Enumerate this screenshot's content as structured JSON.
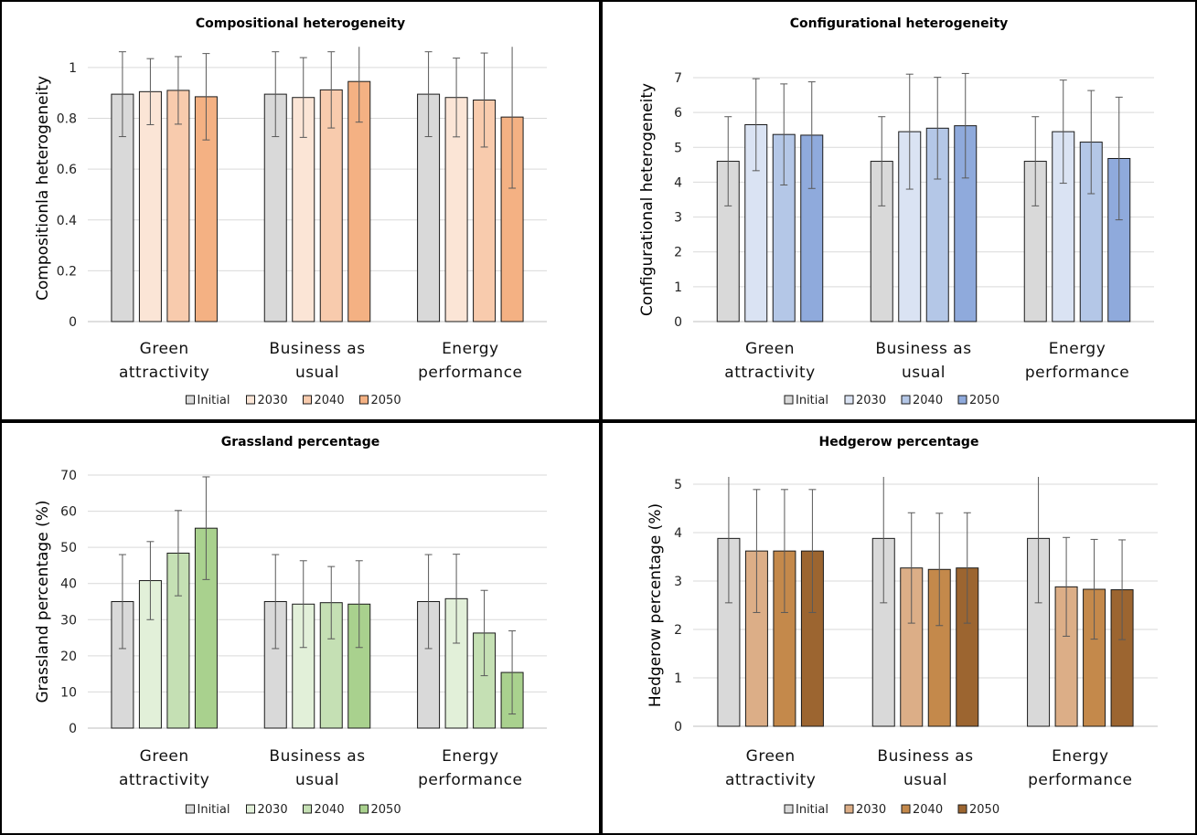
{
  "chart_data": [
    {
      "type": "bar",
      "title": "Compositional heterogeneity",
      "ylabel": "Compositionla heterogeneity",
      "xlabel": "",
      "categories": [
        "Green attractivity",
        "Business as usual",
        "Energy performance"
      ],
      "category_lines": [
        [
          "Green",
          "attractivity"
        ],
        [
          "Business as",
          "usual"
        ],
        [
          "Energy",
          "performance"
        ]
      ],
      "ylim": [
        0,
        1.05
      ],
      "yticks": [
        0,
        0.2,
        0.4,
        0.6,
        0.8,
        1
      ],
      "ytick_labels": [
        "0",
        "0.2",
        "0.4",
        "0.6",
        "0.8",
        "1"
      ],
      "grid": true,
      "legend_position": "bottom",
      "series": [
        {
          "name": "Initial",
          "color": "#d9d9d9",
          "values": [
            0.895,
            0.895,
            0.895
          ],
          "error": [
            0.167,
            0.167,
            0.167
          ]
        },
        {
          "name": "2030",
          "color": "#fbe5d6",
          "values": [
            0.905,
            0.882,
            0.882
          ],
          "error": [
            0.13,
            0.157,
            0.155
          ]
        },
        {
          "name": "2040",
          "color": "#f8cbad",
          "values": [
            0.91,
            0.912,
            0.872
          ],
          "error": [
            0.133,
            0.15,
            0.185
          ]
        },
        {
          "name": "2050",
          "color": "#f4b183",
          "values": [
            0.885,
            0.945,
            0.805
          ],
          "error": [
            0.17,
            0.16,
            0.28
          ]
        }
      ]
    },
    {
      "type": "bar",
      "title": "Configurational heterogeneity",
      "ylabel": "Configurational heterogeneity",
      "xlabel": "",
      "categories": [
        "Green attractivity",
        "Business as usual",
        "Energy performance"
      ],
      "category_lines": [
        [
          "Green",
          "attractivity"
        ],
        [
          "Business as",
          "usual"
        ],
        [
          "Energy",
          "performance"
        ]
      ],
      "ylim": [
        0,
        7
      ],
      "yticks": [
        0,
        1,
        2,
        3,
        4,
        5,
        6,
        7
      ],
      "ytick_labels": [
        "0",
        "1",
        "2",
        "3",
        "4",
        "5",
        "6",
        "7"
      ],
      "grid": true,
      "legend_position": "bottom",
      "series": [
        {
          "name": "Initial",
          "color": "#d9d9d9",
          "values": [
            4.6,
            4.6,
            4.6
          ],
          "error": [
            1.28,
            1.28,
            1.28
          ]
        },
        {
          "name": "2030",
          "color": "#dae3f3",
          "values": [
            5.65,
            5.45,
            5.45
          ],
          "error": [
            1.32,
            1.65,
            1.48
          ]
        },
        {
          "name": "2040",
          "color": "#b4c7e7",
          "values": [
            5.37,
            5.55,
            5.15
          ],
          "error": [
            1.45,
            1.46,
            1.48
          ]
        },
        {
          "name": "2050",
          "color": "#8faadc",
          "values": [
            5.35,
            5.62,
            4.68
          ],
          "error": [
            1.53,
            1.5,
            1.76
          ]
        }
      ]
    },
    {
      "type": "bar",
      "title": "Grassland percentage",
      "ylabel": "Grassland percentage (%)",
      "xlabel": "",
      "categories": [
        "Green attractivity",
        "Business as usual",
        "Energy performance"
      ],
      "category_lines": [
        [
          "Green",
          "attractivity"
        ],
        [
          "Business as",
          "usual"
        ],
        [
          "Energy",
          "performance"
        ]
      ],
      "ylim": [
        0,
        70
      ],
      "yticks": [
        0,
        10,
        20,
        30,
        40,
        50,
        60,
        70
      ],
      "ytick_labels": [
        "0",
        "10",
        "20",
        "30",
        "40",
        "50",
        "60",
        "70"
      ],
      "grid": true,
      "legend_position": "bottom",
      "series": [
        {
          "name": "Initial",
          "color": "#d9d9d9",
          "values": [
            35,
            35,
            35
          ],
          "error": [
            13,
            13,
            13
          ]
        },
        {
          "name": "2030",
          "color": "#e2f0d9",
          "values": [
            40.8,
            34.3,
            35.8
          ],
          "error": [
            10.8,
            12,
            12.3
          ]
        },
        {
          "name": "2040",
          "color": "#c5e0b4",
          "values": [
            48.4,
            34.7,
            26.3
          ],
          "error": [
            11.8,
            10,
            11.8
          ]
        },
        {
          "name": "2050",
          "color": "#a9d18e",
          "values": [
            55.3,
            34.3,
            15.4
          ],
          "error": [
            14.2,
            12,
            11.5
          ]
        }
      ]
    },
    {
      "type": "bar",
      "title": "Hedgerow percentage",
      "ylabel": "Hedgerow percentage (%)",
      "xlabel": "",
      "categories": [
        "Green attractivity",
        "Business as usual",
        "Energy performance"
      ],
      "category_lines": [
        [
          "Green",
          "attractivity"
        ],
        [
          "Business as",
          "usual"
        ],
        [
          "Energy",
          "performance"
        ]
      ],
      "ylim": [
        0,
        5
      ],
      "yticks": [
        0,
        1,
        2,
        3,
        4,
        5
      ],
      "ytick_labels": [
        "0",
        "1",
        "2",
        "3",
        "4",
        "5"
      ],
      "grid": true,
      "legend_position": "bottom",
      "series": [
        {
          "name": "Initial",
          "color": "#d9d9d9",
          "values": [
            3.88,
            3.88,
            3.88
          ],
          "error": [
            1.33,
            1.33,
            1.33
          ]
        },
        {
          "name": "2030",
          "color": "#dcae87",
          "values": [
            3.62,
            3.27,
            2.88
          ],
          "error": [
            1.27,
            1.14,
            1.02
          ]
        },
        {
          "name": "2040",
          "color": "#c4894b",
          "values": [
            3.62,
            3.24,
            2.83
          ],
          "error": [
            1.27,
            1.16,
            1.03
          ]
        },
        {
          "name": "2050",
          "color": "#9c6530",
          "values": [
            3.62,
            3.27,
            2.82
          ],
          "error": [
            1.27,
            1.14,
            1.03
          ]
        }
      ]
    }
  ]
}
